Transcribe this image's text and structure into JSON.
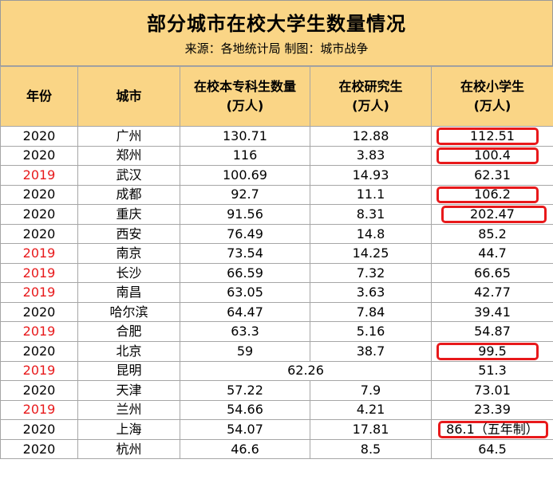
{
  "title": "部分城市在校大学生数量情况",
  "subtitle": "来源：各地统计局    制图：城市战争",
  "headers": {
    "year": "年份",
    "city": "城市",
    "undergrad_line1": "在校本专科生数量",
    "undergrad_line2": "(万人)",
    "grad_line1": "在校研究生",
    "grad_line2": "(万人)",
    "primary_line1": "在校小学生",
    "primary_line2": "(万人)"
  },
  "colors": {
    "header_bg": "#fad586",
    "year_2019": "#e8191b",
    "highlight_ring": "#e8191b"
  },
  "rows": [
    {
      "year": "2020",
      "city": "广州",
      "undergrad": "130.71",
      "grad": "12.88",
      "primary": "112.51",
      "highlight": true
    },
    {
      "year": "2020",
      "city": "郑州",
      "undergrad": "116",
      "grad": "3.83",
      "primary": "100.4",
      "highlight": true
    },
    {
      "year": "2019",
      "city": "武汉",
      "undergrad": "100.69",
      "grad": "14.93",
      "primary": "62.31",
      "highlight": false
    },
    {
      "year": "2020",
      "city": "成都",
      "undergrad": "92.7",
      "grad": "11.1",
      "primary": "106.2",
      "highlight": true
    },
    {
      "year": "2020",
      "city": "重庆",
      "undergrad": "91.56",
      "grad": "8.31",
      "primary": "202.47",
      "highlight": true
    },
    {
      "year": "2020",
      "city": "西安",
      "undergrad": "76.49",
      "grad": "14.8",
      "primary": "85.2",
      "highlight": false
    },
    {
      "year": "2019",
      "city": "南京",
      "undergrad": "73.54",
      "grad": "14.25",
      "primary": "44.7",
      "highlight": false
    },
    {
      "year": "2019",
      "city": "长沙",
      "undergrad": "66.59",
      "grad": "7.32",
      "primary": "66.65",
      "highlight": false
    },
    {
      "year": "2019",
      "city": "南昌",
      "undergrad": "63.05",
      "grad": "3.63",
      "primary": "42.77",
      "highlight": false
    },
    {
      "year": "2020",
      "city": "哈尔滨",
      "undergrad": "64.47",
      "grad": "7.84",
      "primary": "39.41",
      "highlight": false
    },
    {
      "year": "2019",
      "city": "合肥",
      "undergrad": "63.3",
      "grad": "5.16",
      "primary": "54.87",
      "highlight": false
    },
    {
      "year": "2020",
      "city": "北京",
      "undergrad": "59",
      "grad": "38.7",
      "primary": "99.5",
      "highlight": true
    },
    {
      "year": "2019",
      "city": "昆明",
      "combined": "62.26",
      "primary": "51.3",
      "highlight": false
    },
    {
      "year": "2020",
      "city": "天津",
      "undergrad": "57.22",
      "grad": "7.9",
      "primary": "73.01",
      "highlight": false
    },
    {
      "year": "2019",
      "city": "兰州",
      "undergrad": "54.66",
      "grad": "4.21",
      "primary": "23.39",
      "highlight": false
    },
    {
      "year": "2020",
      "city": "上海",
      "undergrad": "54.07",
      "grad": "17.81",
      "primary": "86.1（五年制）",
      "highlight": true
    },
    {
      "year": "2020",
      "city": "杭州",
      "undergrad": "46.6",
      "grad": "8.5",
      "primary": "64.5",
      "highlight": false
    }
  ]
}
